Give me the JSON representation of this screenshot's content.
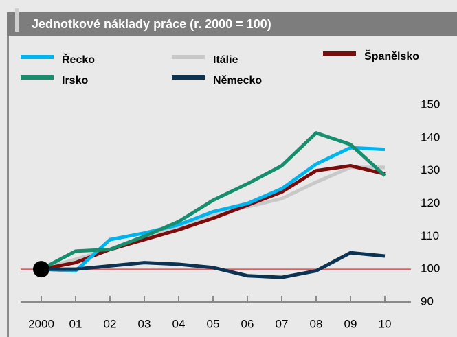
{
  "chart_data": {
    "type": "line",
    "title": "Jednotkové náklady práce (r. 2000 = 100)",
    "categories": [
      "2000",
      "01",
      "02",
      "03",
      "04",
      "05",
      "06",
      "07",
      "08",
      "09",
      "10"
    ],
    "series": [
      {
        "name": "Řecko",
        "color": "#00b4f0",
        "values": [
          100,
          99.5,
          109,
          111,
          113.5,
          117.5,
          120,
          124.5,
          132,
          137,
          136.5
        ]
      },
      {
        "name": "Irsko",
        "color": "#178f6e",
        "values": [
          100,
          105.5,
          106,
          110,
          114.5,
          121,
          126,
          131.5,
          141.5,
          138,
          128.5
        ]
      },
      {
        "name": "Itálie",
        "color": "#c8c8c8",
        "values": [
          100,
          103,
          106,
          110,
          113,
          116.5,
          119,
          121.5,
          126.5,
          131,
          131
        ]
      },
      {
        "name": "Německo",
        "color": "#0d3352",
        "values": [
          100,
          100,
          101,
          102,
          101.5,
          100.5,
          98,
          97.5,
          99.5,
          105,
          104
        ]
      },
      {
        "name": "Španělsko",
        "color": "#7a0c0c",
        "values": [
          100,
          102,
          106,
          109,
          112,
          115.5,
          119.5,
          123.5,
          130,
          131.5,
          129
        ]
      }
    ],
    "ylim": [
      90,
      150
    ],
    "yticks": [
      90,
      100,
      110,
      120,
      130,
      140,
      150
    ],
    "reference_line": 100,
    "reference_color": "#e8474c"
  }
}
